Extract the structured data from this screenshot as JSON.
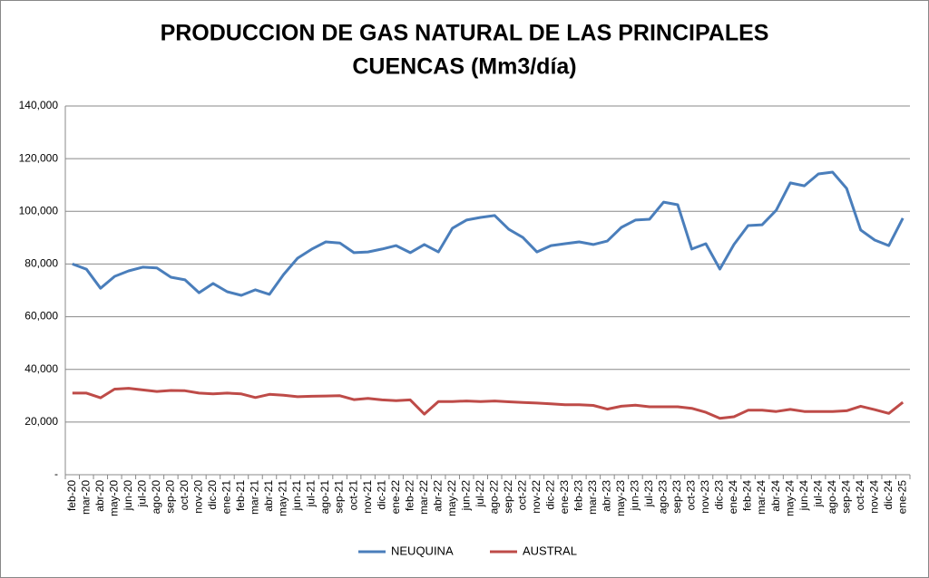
{
  "chart_data": {
    "type": "line",
    "title": "PRODUCCION DE GAS NATURAL DE LAS PRINCIPALES",
    "subtitle": "CUENCAS (Mm3/día)",
    "categories": [
      "feb-20",
      "mar-20",
      "abr-20",
      "may-20",
      "jun-20",
      "jul-20",
      "ago-20",
      "sep-20",
      "oct-20",
      "nov-20",
      "dic-20",
      "ene-21",
      "feb-21",
      "mar-21",
      "abr-21",
      "may-21",
      "jun-21",
      "jul-21",
      "ago-21",
      "sep-21",
      "oct-21",
      "nov-21",
      "dic-21",
      "ene-22",
      "feb-22",
      "mar-22",
      "abr-22",
      "may-22",
      "jun-22",
      "jul-22",
      "ago-22",
      "sep-22",
      "oct-22",
      "nov-22",
      "dic-22",
      "ene-23",
      "feb-23",
      "mar-23",
      "abr-23",
      "may-23",
      "jun-23",
      "jul-23",
      "ago-23",
      "sep-23",
      "oct-23",
      "nov-23",
      "dic-23",
      "ene-24",
      "feb-24",
      "mar-24",
      "abr-24",
      "may-24",
      "jun-24",
      "jul-24",
      "ago-24",
      "sep-24",
      "oct-24",
      "nov-24",
      "dic-24",
      "ene-25"
    ],
    "series": [
      {
        "name": "NEUQUINA",
        "color": "#4a7ebb",
        "values": [
          80000,
          78000,
          70800,
          75300,
          77400,
          78800,
          78500,
          75000,
          74000,
          69100,
          72600,
          69500,
          68100,
          70200,
          68500,
          76000,
          82200,
          85600,
          88400,
          88000,
          84300,
          84600,
          85700,
          87000,
          84300,
          87400,
          84600,
          93600,
          96700,
          97700,
          98400,
          93200,
          90100,
          84600,
          87000,
          87700,
          88400,
          87400,
          88700,
          93900,
          96700,
          97000,
          103500,
          102500,
          85700,
          87700,
          78100,
          87400,
          94600,
          94900,
          100400,
          110800,
          109700,
          114200,
          114900,
          108700,
          92900,
          89100,
          87000,
          97400
        ]
      },
      {
        "name": "AUSTRAL",
        "color": "#be4b48",
        "values": [
          31000,
          31000,
          29200,
          32500,
          32800,
          32200,
          31600,
          32000,
          31900,
          31000,
          30700,
          31000,
          30700,
          29300,
          30500,
          30200,
          29600,
          29800,
          29900,
          30000,
          28500,
          29000,
          28400,
          28100,
          28400,
          23000,
          27800,
          27800,
          28000,
          27800,
          28000,
          27700,
          27400,
          27200,
          26900,
          26600,
          26600,
          26300,
          24900,
          26000,
          26400,
          25800,
          25800,
          25800,
          25200,
          23700,
          21400,
          22000,
          24500,
          24500,
          24000,
          24800,
          24000,
          24000,
          24000,
          24300,
          26000,
          24700,
          23300,
          27500
        ]
      }
    ],
    "ylim": [
      0,
      140000
    ],
    "yticks": [
      {
        "value": 0,
        "label": "-"
      },
      {
        "value": 20000,
        "label": "20,000"
      },
      {
        "value": 40000,
        "label": "40,000"
      },
      {
        "value": 60000,
        "label": "60,000"
      },
      {
        "value": 80000,
        "label": "80,000"
      },
      {
        "value": 100000,
        "label": "100,000"
      },
      {
        "value": 120000,
        "label": "120,000"
      },
      {
        "value": 140000,
        "label": "140,000"
      }
    ],
    "grid": true,
    "legend": "bottom"
  }
}
